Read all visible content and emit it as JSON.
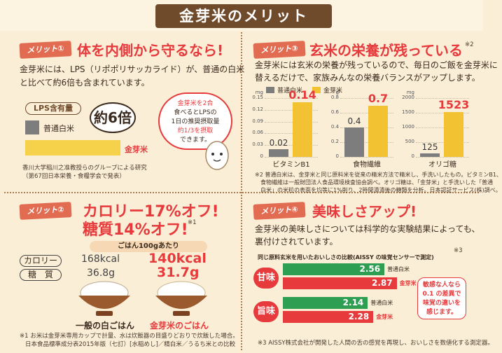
{
  "banner": {
    "title": "金芽米のメリット"
  },
  "merit1": {
    "tag": "メリット①",
    "heading": "体を内側から守るなら!",
    "body_line1": "金芽米には、LPS（リポポリサッカライド）が、普通の白米",
    "body_line2": "と比べて約6倍も含まれています。",
    "lps_label": "LPS含有量",
    "white_rice_label": "普通白米",
    "kinme_label": "金芽米",
    "multiplier": "約6倍",
    "bubble_line1": "金芽米を2合",
    "bubble_line2": "食べるとLPSの",
    "bubble_line3": "1日の推奨摂取量",
    "bubble_line4": "約1/3を摂取",
    "bubble_line5": "できます。",
    "source_line1": "香川大学稲川之准教授らのグループによる研究",
    "source_line2": "（第67回日本栄養・食糧学会で発表）",
    "lps_ratio": 6
  },
  "merit2": {
    "tag": "メリット②",
    "heading_line1": "カロリー17%オフ!",
    "heading_line2": "糖質14%オフ!",
    "footnote_mark": "※1",
    "per_label": "ごはん100gあたり",
    "row_calorie": "カロリー",
    "row_sugar": "糖　質",
    "normal_cal": "168kcal",
    "normal_sugar": "36.8g",
    "kinme_cal": "140kcal",
    "kinme_sugar": "31.7g",
    "normal_caption": "一般の白ごはん",
    "kinme_caption": "金芽米のごはん",
    "note_line1": "※1 お米は金芽米専用カップで計量、水は炊飯器の目盛りどおりで炊飯した場合。",
    "note_line2": "日本食品標準成分表2015年版（七訂）[水稲めし]／精白米／うるち米との比較"
  },
  "merit3": {
    "tag": "メリット③",
    "heading": "玄米の栄養が残っている",
    "heading_mark": "※2",
    "body_line1": "金芽米には玄米の栄養が残っているので、毎日のご飯を金芽米に",
    "body_line2": "替えるだけで、家族みんなの栄養バランスがアップします。",
    "legend_white": "普通白米",
    "legend_kinme": "金芽米",
    "note_line1": "※2 普通白米は、金芽米と同じ原料米を従来の精米方法で精米し、手洗いしたもの。ビタミンB1、",
    "note_line2": "食物繊維は一般財団法人食品環境検査協会調べ。オリゴ糖は、「金芽米」と手洗いした「普通",
    "note_line3": "白米」の米粒の表面を均等に1%削り、2時間漬漬後の糖類を分析。日本認証サービス(株)調べ。"
  },
  "merit4": {
    "tag": "メリット④",
    "heading": "美味しさアップ!",
    "body_line1": "金芽米の美味しさについては科学的な実験結果によっても、",
    "body_line2": "裏付けされています。",
    "compare_title": "同じ原料玄米を用いたおいしさの比較(AISSY の味覚センサーで測定)",
    "compare_mark": "※3",
    "sweet_label": "甘味",
    "umami_label": "旨味",
    "white_label": "普通白米",
    "kinme_label": "金芽米",
    "callout_line1": "敏感な人なら",
    "callout_line2": "0.1 の差異で",
    "callout_line3": "味覚の違いを",
    "callout_line4": "感じます。",
    "note": "※3 AISSY株式会社が開発した人間の舌の感覚を再現し、おいしさを数値化する測定器。"
  },
  "chart_data": [
    {
      "type": "bar",
      "title": "ビタミンB1",
      "ylabel": "mg",
      "categories": [
        "普通白米",
        "金芽米"
      ],
      "values": [
        0.02,
        0.14
      ],
      "ylim": [
        0,
        0.15
      ],
      "ticks": [
        "0",
        "0.03",
        "0.06",
        "0.09",
        "0.12",
        "0.15"
      ]
    },
    {
      "type": "bar",
      "title": "食物繊維",
      "ylabel": "g",
      "categories": [
        "普通白米",
        "金芽米"
      ],
      "values": [
        0.4,
        0.7
      ],
      "ylim": [
        0,
        0.8
      ],
      "ticks": [
        "0",
        "0.2",
        "0.4",
        "0.6",
        "0.8"
      ]
    },
    {
      "type": "bar",
      "title": "オリゴ糖",
      "ylabel": "mg",
      "categories": [
        "普通白米",
        "金芽米"
      ],
      "values": [
        125,
        1523
      ],
      "ylim": [
        0,
        2000
      ],
      "ticks": [
        "0",
        "500",
        "1000",
        "1500",
        "2000"
      ]
    },
    {
      "type": "bar",
      "title": "甘味",
      "categories": [
        "普通白米",
        "金芽米"
      ],
      "values": [
        2.56,
        2.87
      ]
    },
    {
      "type": "bar",
      "title": "旨味",
      "categories": [
        "普通白米",
        "金芽米"
      ],
      "values": [
        2.14,
        2.28
      ]
    }
  ],
  "colors": {
    "accent": "#e63a3c",
    "gold": "#f2c233",
    "gray": "#7d7d7d",
    "green": "#2e9f52",
    "brown": "#6f4a2b"
  }
}
